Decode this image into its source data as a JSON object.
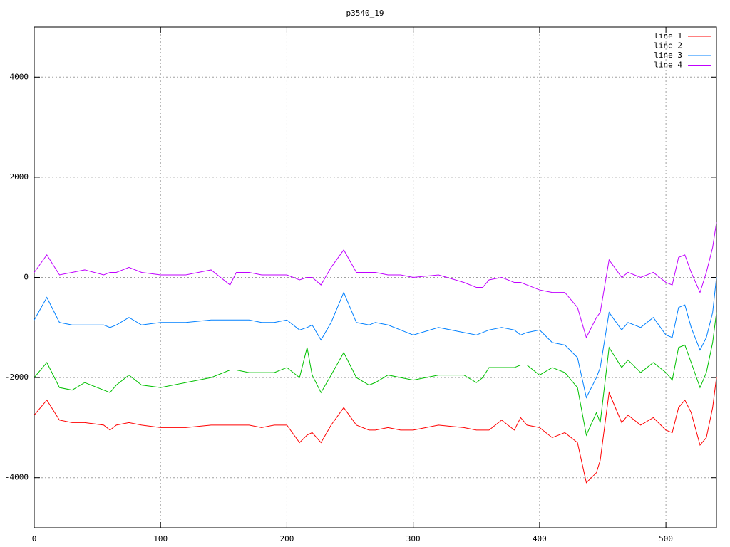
{
  "chart_data": {
    "type": "line",
    "title": "p3540_19",
    "x": [
      0,
      10,
      20,
      30,
      40,
      55,
      60,
      65,
      75,
      85,
      100,
      120,
      140,
      155,
      160,
      170,
      180,
      190,
      200,
      210,
      216,
      220,
      227,
      235,
      245,
      255,
      265,
      270,
      280,
      290,
      300,
      320,
      340,
      350,
      355,
      360,
      370,
      380,
      385,
      390,
      400,
      410,
      420,
      430,
      437,
      445,
      448,
      455,
      465,
      470,
      480,
      490,
      500,
      505,
      510,
      515,
      520,
      527,
      532,
      537,
      540
    ],
    "series": [
      {
        "name": "line 1",
        "color": "#ff0000",
        "values": [
          -2750,
          -2450,
          -2850,
          -2900,
          -2900,
          -2950,
          -3050,
          -2950,
          -2900,
          -2950,
          -3000,
          -3000,
          -2950,
          -2950,
          -2950,
          -2950,
          -3000,
          -2950,
          -2950,
          -3300,
          -3150,
          -3100,
          -3300,
          -2950,
          -2600,
          -2950,
          -3050,
          -3050,
          -3000,
          -3050,
          -3050,
          -2950,
          -3000,
          -3050,
          -3050,
          -3050,
          -2850,
          -3050,
          -2800,
          -2950,
          -3000,
          -3200,
          -3100,
          -3300,
          -4100,
          -3900,
          -3650,
          -2300,
          -2900,
          -2750,
          -2950,
          -2800,
          -3050,
          -3100,
          -2600,
          -2450,
          -2700,
          -3350,
          -3200,
          -2600,
          -2000
        ]
      },
      {
        "name": "line 2",
        "color": "#00c000",
        "values": [
          -2000,
          -1700,
          -2200,
          -2250,
          -2100,
          -2250,
          -2300,
          -2150,
          -1950,
          -2150,
          -2200,
          -2100,
          -2000,
          -1850,
          -1850,
          -1900,
          -1900,
          -1900,
          -1800,
          -2000,
          -1400,
          -1950,
          -2300,
          -1950,
          -1500,
          -2000,
          -2150,
          -2100,
          -1950,
          -2000,
          -2050,
          -1950,
          -1950,
          -2100,
          -2000,
          -1800,
          -1800,
          -1800,
          -1750,
          -1750,
          -1950,
          -1800,
          -1900,
          -2200,
          -3150,
          -2700,
          -2900,
          -1400,
          -1800,
          -1650,
          -1900,
          -1700,
          -1900,
          -2050,
          -1400,
          -1350,
          -1700,
          -2200,
          -1900,
          -1300,
          -700
        ]
      },
      {
        "name": "line 3",
        "color": "#0080ff",
        "values": [
          -850,
          -400,
          -900,
          -950,
          -950,
          -950,
          -1000,
          -950,
          -800,
          -950,
          -900,
          -900,
          -850,
          -850,
          -850,
          -850,
          -900,
          -900,
          -850,
          -1050,
          -1000,
          -950,
          -1250,
          -900,
          -300,
          -900,
          -950,
          -900,
          -950,
          -1050,
          -1150,
          -1000,
          -1100,
          -1150,
          -1100,
          -1050,
          -1000,
          -1050,
          -1150,
          -1100,
          -1050,
          -1300,
          -1350,
          -1600,
          -2400,
          -2000,
          -1800,
          -700,
          -1050,
          -900,
          -1000,
          -800,
          -1150,
          -1200,
          -600,
          -550,
          -1000,
          -1450,
          -1200,
          -700,
          0
        ]
      },
      {
        "name": "line 4",
        "color": "#c000ff",
        "values": [
          100,
          450,
          50,
          100,
          150,
          50,
          100,
          100,
          200,
          100,
          50,
          50,
          150,
          -150,
          100,
          100,
          50,
          50,
          50,
          -50,
          0,
          0,
          -150,
          200,
          550,
          100,
          100,
          100,
          50,
          50,
          0,
          50,
          -100,
          -200,
          -200,
          -50,
          0,
          -100,
          -100,
          -150,
          -250,
          -300,
          -300,
          -600,
          -1200,
          -800,
          -700,
          350,
          0,
          100,
          0,
          100,
          -100,
          -150,
          400,
          450,
          100,
          -300,
          100,
          600,
          1100
        ]
      }
    ],
    "xlim": [
      0,
      540
    ],
    "xticks": [
      0,
      100,
      200,
      300,
      400,
      500
    ],
    "ylim": [
      -5000,
      5000
    ],
    "yticks": [
      -4000,
      -2000,
      0,
      2000,
      4000
    ],
    "grid": true,
    "legend": "top-right"
  }
}
